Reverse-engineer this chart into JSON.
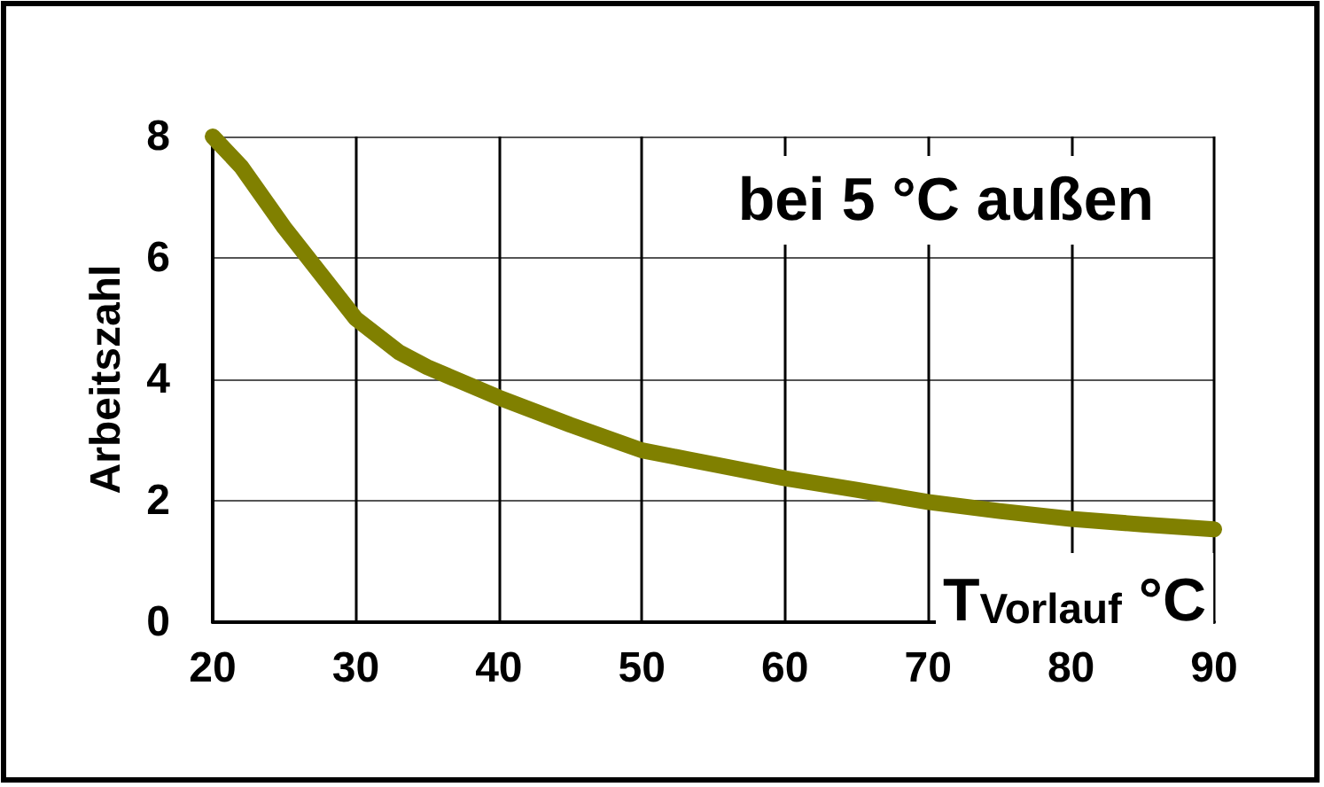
{
  "chart_data": {
    "type": "line",
    "xlabel": "T$_{Vorlauf}$ °C",
    "ylabel": "Arbeitszahl",
    "annotations": [
      "bei 5 °C außen"
    ],
    "x": [
      20,
      22,
      25,
      28,
      30,
      33,
      35,
      40,
      45,
      50,
      55,
      60,
      65,
      70,
      75,
      80,
      85,
      90
    ],
    "series": [
      {
        "color": "#808000",
        "values": [
          8.0,
          7.5,
          6.5,
          5.6,
          5.0,
          4.45,
          4.2,
          3.7,
          3.25,
          2.83,
          2.6,
          2.37,
          2.18,
          1.98,
          1.83,
          1.7,
          1.61,
          1.53
        ]
      }
    ],
    "xlim": [
      20,
      90
    ],
    "xticks": [
      20,
      30,
      40,
      50,
      60,
      70,
      80,
      90
    ],
    "ylim": [
      0,
      8
    ],
    "yticks": [
      0,
      2,
      4,
      6,
      8
    ],
    "grid": true,
    "line_style": "solid"
  }
}
